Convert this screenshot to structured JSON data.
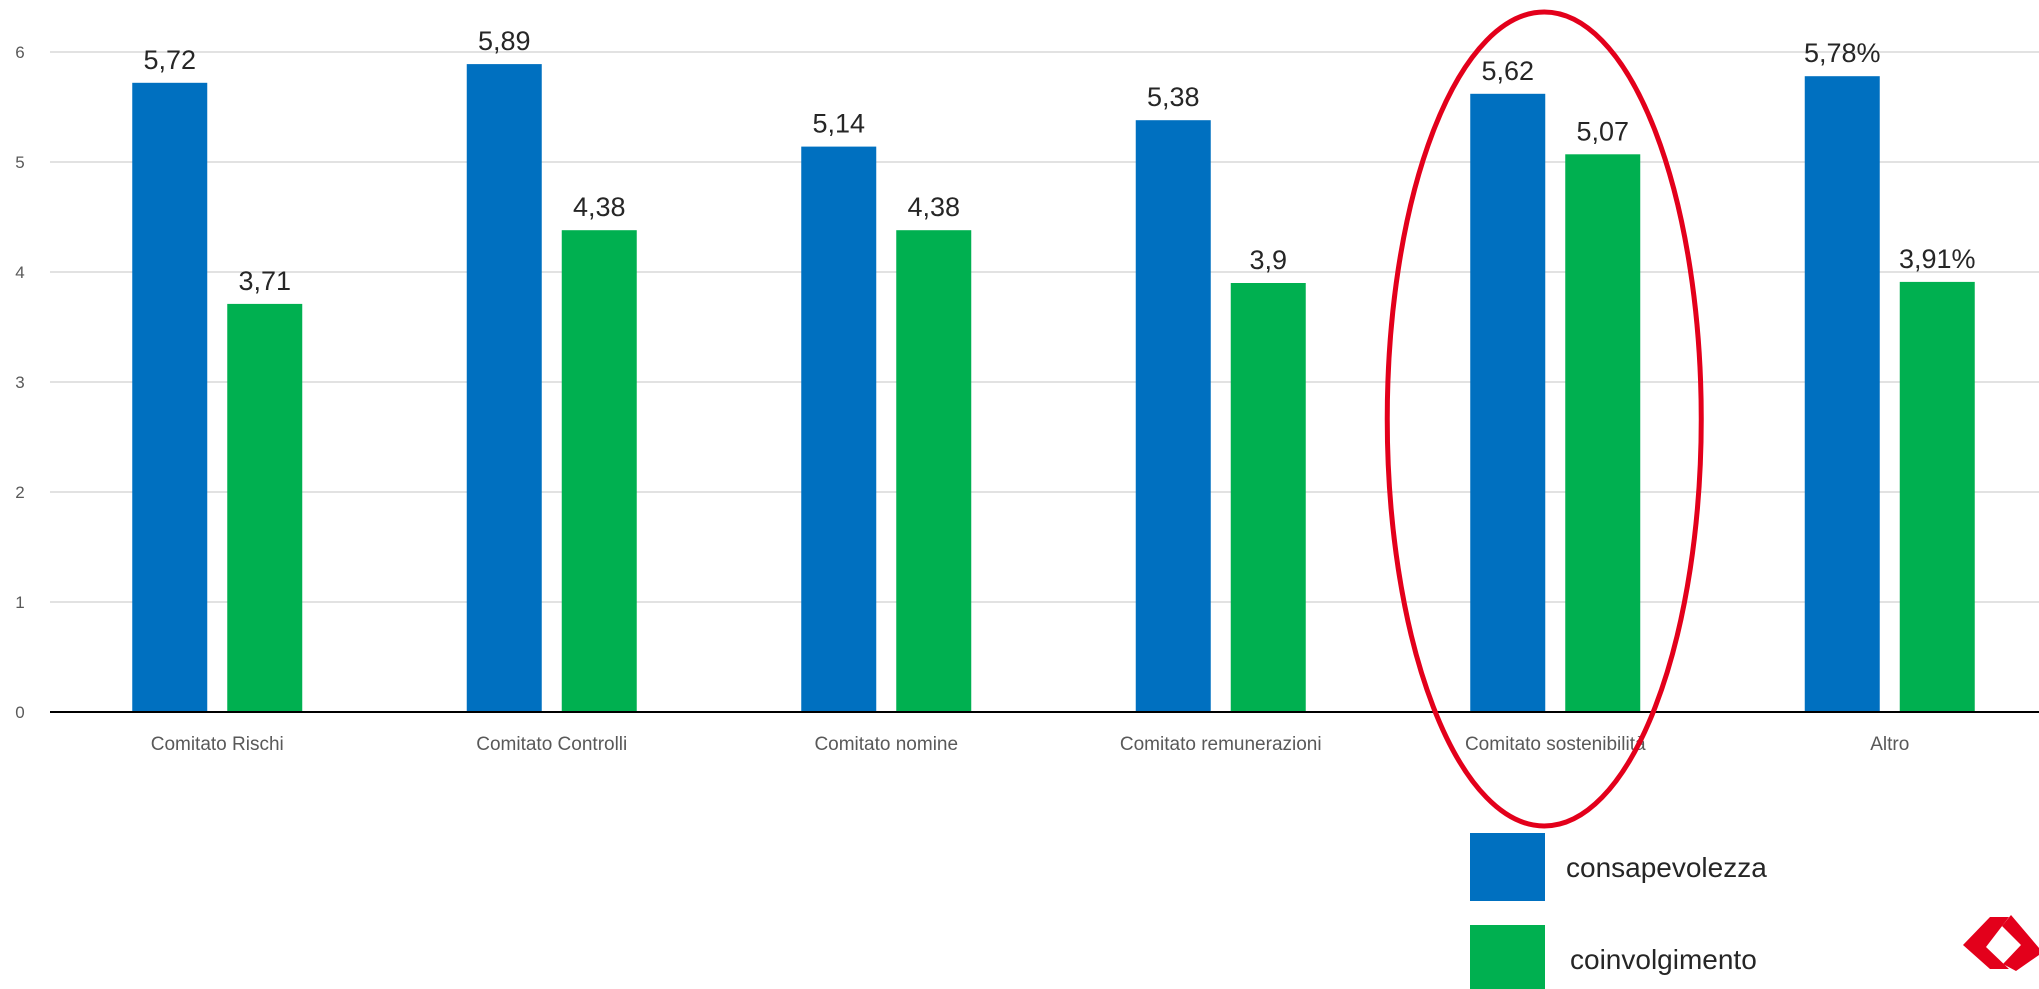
{
  "chart_data": {
    "type": "bar",
    "categories": [
      "Comitato Rischi",
      "Comitato Controlli",
      "Comitato nomine",
      "Comitato remunerazioni",
      "Comitato sostenibilità",
      "Altro"
    ],
    "series": [
      {
        "name": "consapevolezza",
        "color": "#0070C0",
        "values": [
          5.72,
          5.89,
          5.14,
          5.38,
          5.62,
          5.78
        ],
        "labels": [
          "5,72",
          "5,89",
          "5,14",
          "5,38",
          "5,62",
          "5,78%"
        ]
      },
      {
        "name": "coinvolgimento",
        "color": "#00B050",
        "values": [
          3.71,
          4.38,
          4.38,
          3.9,
          5.07,
          3.91
        ],
        "labels": [
          "3,71",
          "4,38",
          "4,38",
          "3,9",
          "5,07",
          "3,91%"
        ]
      }
    ],
    "yticks": [
      "0",
      "1",
      "2",
      "3",
      "4",
      "5",
      "6"
    ],
    "ylim": [
      0,
      6
    ],
    "grid": true,
    "legend_position": "bottom-right",
    "highlight": {
      "category": "Comitato sostenibilità",
      "shape": "ellipse",
      "color": "#E3001B"
    },
    "logo": {
      "name": "brand-logo-icon",
      "color": "#E3001B"
    }
  }
}
